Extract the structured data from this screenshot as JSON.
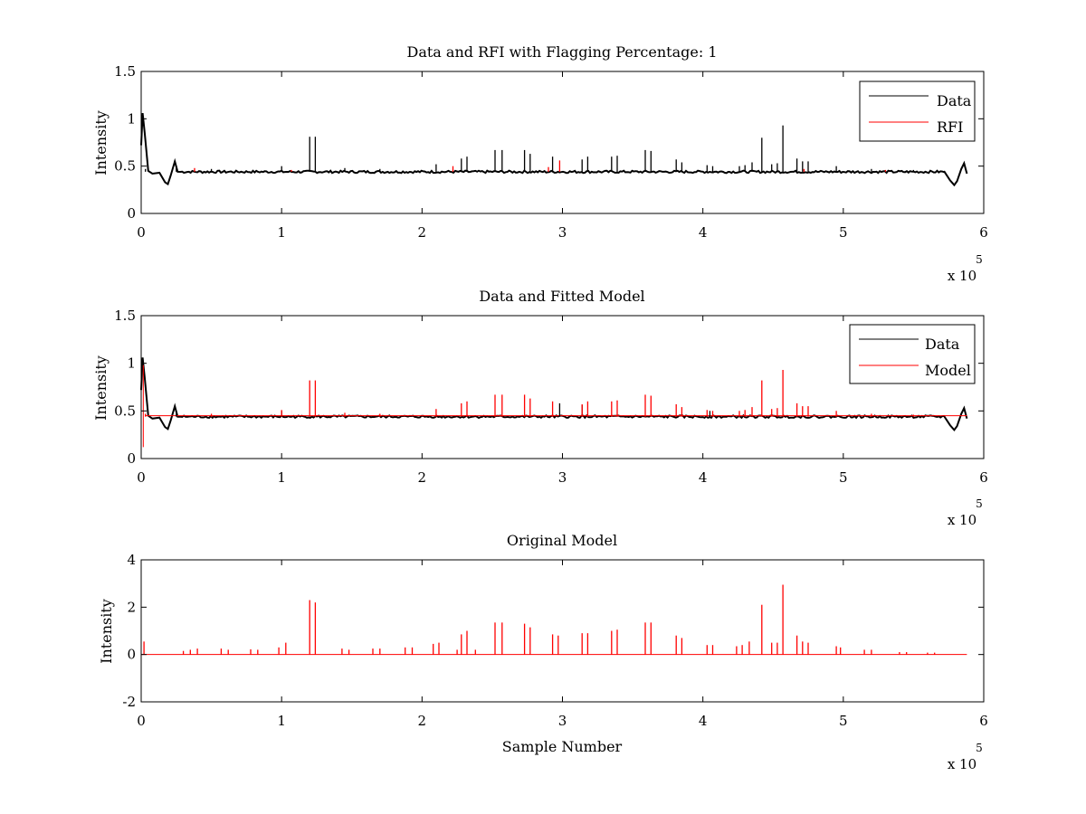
{
  "figure": {
    "background": "#ffffff",
    "axis_color": "#000000"
  },
  "chart_data": [
    {
      "type": "line",
      "title": "Data and RFI with Flagging Percentage: 1",
      "xlabel": "",
      "ylabel": "Intensity",
      "xlim": [
        0,
        6
      ],
      "ylim": [
        0,
        1.5
      ],
      "xticks": [
        "0",
        "1",
        "2",
        "3",
        "4",
        "5",
        "6"
      ],
      "yticks": [
        "0",
        "0.5",
        "1",
        "1.5"
      ],
      "x_multiplier": {
        "base": "x 10",
        "exponent": "5"
      },
      "legend_position": "top-right",
      "grid": false,
      "baseline": 0.44,
      "series": [
        {
          "name": "Data",
          "color": "#000000",
          "spikes": [
            [
              0.03,
              0.47
            ],
            [
              0.25,
              0.48
            ],
            [
              0.5,
              0.47
            ],
            [
              1.0,
              0.5
            ],
            [
              1.2,
              0.81
            ],
            [
              1.24,
              0.81
            ],
            [
              1.45,
              0.48
            ],
            [
              1.7,
              0.47
            ],
            [
              2.1,
              0.52
            ],
            [
              2.28,
              0.58
            ],
            [
              2.32,
              0.6
            ],
            [
              2.52,
              0.67
            ],
            [
              2.57,
              0.67
            ],
            [
              2.73,
              0.67
            ],
            [
              2.77,
              0.63
            ],
            [
              2.93,
              0.6
            ],
            [
              3.14,
              0.57
            ],
            [
              3.18,
              0.6
            ],
            [
              3.35,
              0.6
            ],
            [
              3.39,
              0.61
            ],
            [
              3.59,
              0.67
            ],
            [
              3.63,
              0.66
            ],
            [
              3.81,
              0.57
            ],
            [
              3.85,
              0.54
            ],
            [
              4.03,
              0.51
            ],
            [
              4.07,
              0.5
            ],
            [
              4.26,
              0.5
            ],
            [
              4.3,
              0.51
            ],
            [
              4.35,
              0.54
            ],
            [
              4.42,
              0.8
            ],
            [
              4.49,
              0.52
            ],
            [
              4.53,
              0.53
            ],
            [
              4.57,
              0.93
            ],
            [
              4.67,
              0.58
            ],
            [
              4.71,
              0.55
            ],
            [
              4.75,
              0.55
            ],
            [
              4.95,
              0.5
            ],
            [
              5.2,
              0.47
            ],
            [
              5.5,
              0.46
            ]
          ]
        },
        {
          "name": "RFI",
          "color": "#ff0000",
          "spikes": [
            [
              0.38,
              0.48
            ],
            [
              1.07,
              0.46
            ],
            [
              2.22,
              0.5
            ],
            [
              2.9,
              0.49
            ],
            [
              2.98,
              0.56
            ],
            [
              4.72,
              0.47
            ],
            [
              5.3,
              0.46
            ]
          ]
        }
      ]
    },
    {
      "type": "line",
      "title": "Data and Fitted Model",
      "xlabel": "",
      "ylabel": "Intensity",
      "xlim": [
        0,
        6
      ],
      "ylim": [
        0,
        1.5
      ],
      "xticks": [
        "0",
        "1",
        "2",
        "3",
        "4",
        "5",
        "6"
      ],
      "yticks": [
        "0",
        "0.5",
        "1",
        "1.5"
      ],
      "x_multiplier": {
        "base": "x 10",
        "exponent": "5"
      },
      "legend_position": "top-right",
      "grid": false,
      "baseline": 0.44,
      "series": [
        {
          "name": "Data",
          "color": "#000000",
          "spikes": [
            [
              0.25,
              0.47
            ],
            [
              1.0,
              0.5
            ],
            [
              2.98,
              0.58
            ],
            [
              3.14,
              0.56
            ],
            [
              4.05,
              0.5
            ]
          ]
        },
        {
          "name": "Model",
          "color": "#ff0000",
          "spikes": [
            [
              0.03,
              0.47
            ],
            [
              0.5,
              0.47
            ],
            [
              1.0,
              0.51
            ],
            [
              1.2,
              0.82
            ],
            [
              1.24,
              0.82
            ],
            [
              1.45,
              0.48
            ],
            [
              1.7,
              0.47
            ],
            [
              2.1,
              0.52
            ],
            [
              2.28,
              0.58
            ],
            [
              2.32,
              0.6
            ],
            [
              2.52,
              0.67
            ],
            [
              2.57,
              0.67
            ],
            [
              2.73,
              0.67
            ],
            [
              2.77,
              0.63
            ],
            [
              2.93,
              0.6
            ],
            [
              3.14,
              0.57
            ],
            [
              3.18,
              0.6
            ],
            [
              3.35,
              0.6
            ],
            [
              3.39,
              0.61
            ],
            [
              3.59,
              0.67
            ],
            [
              3.63,
              0.66
            ],
            [
              3.81,
              0.57
            ],
            [
              3.85,
              0.54
            ],
            [
              4.03,
              0.51
            ],
            [
              4.07,
              0.5
            ],
            [
              4.26,
              0.5
            ],
            [
              4.3,
              0.51
            ],
            [
              4.35,
              0.54
            ],
            [
              4.42,
              0.82
            ],
            [
              4.49,
              0.52
            ],
            [
              4.53,
              0.53
            ],
            [
              4.57,
              0.93
            ],
            [
              4.67,
              0.58
            ],
            [
              4.71,
              0.55
            ],
            [
              4.75,
              0.55
            ],
            [
              4.95,
              0.5
            ],
            [
              5.2,
              0.47
            ],
            [
              5.5,
              0.46
            ]
          ]
        }
      ]
    },
    {
      "type": "line",
      "title": "Original Model",
      "xlabel": "Sample Number",
      "ylabel": "Intensity",
      "xlim": [
        0,
        6
      ],
      "ylim": [
        -2,
        4
      ],
      "xticks": [
        "0",
        "1",
        "2",
        "3",
        "4",
        "5",
        "6"
      ],
      "yticks": [
        "-2",
        "0",
        "2",
        "4"
      ],
      "x_multiplier": {
        "base": "x 10",
        "exponent": "5"
      },
      "grid": false,
      "baseline": 0,
      "series": [
        {
          "name": "",
          "color": "#ff0000",
          "spikes": [
            [
              0.02,
              0.55
            ],
            [
              0.3,
              0.15
            ],
            [
              0.35,
              0.2
            ],
            [
              0.4,
              0.25
            ],
            [
              0.57,
              0.25
            ],
            [
              0.62,
              0.2
            ],
            [
              0.78,
              0.22
            ],
            [
              0.83,
              0.2
            ],
            [
              0.98,
              0.3
            ],
            [
              1.03,
              0.5
            ],
            [
              1.2,
              2.3
            ],
            [
              1.24,
              2.2
            ],
            [
              1.43,
              0.25
            ],
            [
              1.48,
              0.2
            ],
            [
              1.65,
              0.25
            ],
            [
              1.7,
              0.25
            ],
            [
              1.88,
              0.3
            ],
            [
              1.93,
              0.3
            ],
            [
              2.08,
              0.45
            ],
            [
              2.12,
              0.5
            ],
            [
              2.25,
              0.2
            ],
            [
              2.28,
              0.85
            ],
            [
              2.32,
              1.0
            ],
            [
              2.38,
              0.2
            ],
            [
              2.52,
              1.35
            ],
            [
              2.57,
              1.35
            ],
            [
              2.73,
              1.3
            ],
            [
              2.77,
              1.15
            ],
            [
              2.93,
              0.85
            ],
            [
              2.97,
              0.8
            ],
            [
              3.14,
              0.9
            ],
            [
              3.18,
              0.9
            ],
            [
              3.35,
              1.0
            ],
            [
              3.39,
              1.05
            ],
            [
              3.59,
              1.35
            ],
            [
              3.63,
              1.35
            ],
            [
              3.81,
              0.8
            ],
            [
              3.85,
              0.7
            ],
            [
              4.03,
              0.4
            ],
            [
              4.07,
              0.4
            ],
            [
              4.24,
              0.35
            ],
            [
              4.28,
              0.4
            ],
            [
              4.33,
              0.55
            ],
            [
              4.42,
              2.1
            ],
            [
              4.49,
              0.5
            ],
            [
              4.53,
              0.5
            ],
            [
              4.57,
              2.95
            ],
            [
              4.67,
              0.8
            ],
            [
              4.71,
              0.55
            ],
            [
              4.75,
              0.5
            ],
            [
              4.95,
              0.35
            ],
            [
              4.98,
              0.3
            ],
            [
              5.15,
              0.2
            ],
            [
              5.2,
              0.2
            ],
            [
              5.4,
              0.1
            ],
            [
              5.45,
              0.1
            ],
            [
              5.6,
              0.08
            ],
            [
              5.65,
              0.08
            ]
          ]
        }
      ]
    }
  ]
}
